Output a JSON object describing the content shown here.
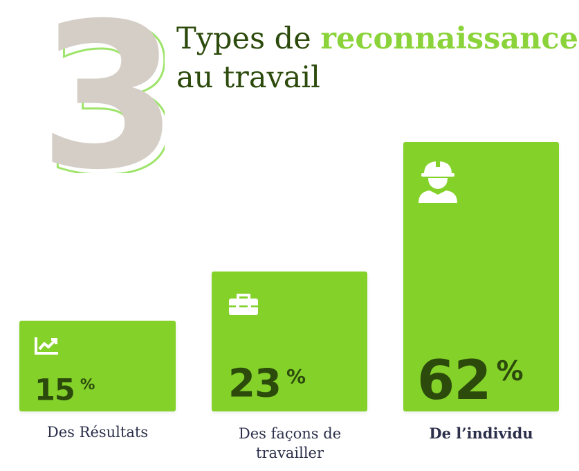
{
  "header": {
    "number": "3",
    "title_prefix": "Types de ",
    "title_accent": "reconnaissance",
    "title_line2": "au travail"
  },
  "colors": {
    "bar": "#84d12a",
    "dark": "#2b4a0b",
    "number_fill": "#d4cec6",
    "number_outline": "#9ee46a",
    "accent": "#8bd33a",
    "label": "#2b2f4a"
  },
  "chart_data": {
    "type": "bar",
    "categories": [
      "Des Résultats",
      "Des façons de travailler",
      "De l’individu"
    ],
    "values": [
      15,
      23,
      62
    ],
    "unit": "%",
    "icons": [
      "trending-up-icon",
      "toolbox-icon",
      "worker-helmet-icon"
    ]
  },
  "bars": [
    {
      "value_text": "15",
      "unit": "%",
      "label": "Des Résultats",
      "icon": "trending-up-icon"
    },
    {
      "value_text": "23",
      "unit": "%",
      "label_line1": "Des façons de",
      "label_line2": "travailler",
      "icon": "toolbox-icon"
    },
    {
      "value_text": "62",
      "unit": "%",
      "label": "De l’individu",
      "icon": "worker-helmet-icon"
    }
  ]
}
